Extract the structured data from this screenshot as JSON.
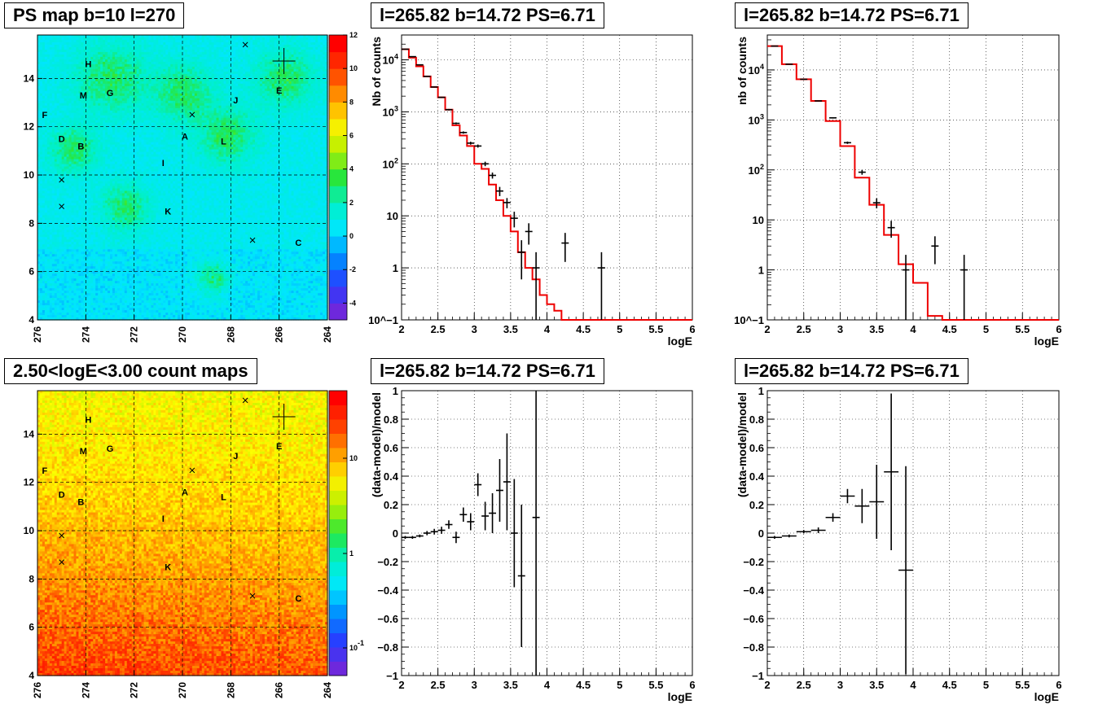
{
  "colors": {
    "model_line": "#ee0000",
    "data_marker": "#000000",
    "grid": "#000000",
    "frame": "#000000"
  },
  "charts": [
    {
      "id": "ps-map",
      "title": "PS map b=10 l=270"
    },
    {
      "id": "spec1",
      "title": "l=265.82 b=14.72 PS=6.71"
    },
    {
      "id": "spec2",
      "title": "l=265.82 b=14.72 PS=6.71"
    },
    {
      "id": "count-map",
      "title": "2.50<logE<3.00 count maps"
    },
    {
      "id": "resid1",
      "title": "l=265.82 b=14.72 PS=6.71"
    },
    {
      "id": "resid2",
      "title": "l=265.82 b=14.72 PS=6.71"
    }
  ],
  "chart_data": [
    {
      "type": "heatmap",
      "title": "PS map b=10 l=270",
      "x_ticks": [
        "276",
        "274",
        "272",
        "270",
        "268",
        "266",
        "264"
      ],
      "xlim": [
        276,
        264
      ],
      "y_ticks": [
        "4",
        "6",
        "8",
        "10",
        "12",
        "14"
      ],
      "ylim": [
        4,
        15.8
      ],
      "colorbar": {
        "range": [
          -5,
          12
        ],
        "ticks": [
          "-4",
          "-2",
          "0",
          "2",
          "4",
          "6",
          "8",
          "10",
          "12"
        ]
      },
      "grid": true,
      "source_labels": [
        {
          "label": "H",
          "l": 273.9,
          "b": 14.6
        },
        {
          "label": "M",
          "l": 274.1,
          "b": 13.3
        },
        {
          "label": "G",
          "l": 273.0,
          "b": 13.4
        },
        {
          "label": "F",
          "l": 275.7,
          "b": 12.5
        },
        {
          "label": "D",
          "l": 275.0,
          "b": 11.5
        },
        {
          "label": "B",
          "l": 274.2,
          "b": 11.2
        },
        {
          "label": "A",
          "l": 269.9,
          "b": 11.6
        },
        {
          "label": "L",
          "l": 268.3,
          "b": 11.4
        },
        {
          "label": "I",
          "l": 270.8,
          "b": 10.5
        },
        {
          "label": "J",
          "l": 267.8,
          "b": 13.1
        },
        {
          "label": "E",
          "l": 266.0,
          "b": 13.5
        },
        {
          "label": "K",
          "l": 270.6,
          "b": 8.5
        },
        {
          "label": "C",
          "l": 265.2,
          "b": 7.2
        }
      ],
      "markers_x": [
        {
          "l": 267.4,
          "b": 15.4
        },
        {
          "l": 269.6,
          "b": 12.5
        },
        {
          "l": 275.0,
          "b": 9.8
        },
        {
          "l": 275.0,
          "b": 8.7
        },
        {
          "l": 267.1,
          "b": 7.3
        }
      ],
      "markers_cross": [
        {
          "l": 265.8,
          "b": 14.72
        }
      ]
    },
    {
      "type": "line",
      "title": "l=265.82 b=14.72 PS=6.71",
      "xlabel": "logE",
      "ylabel": "Nb of counts",
      "xlim": [
        2,
        6
      ],
      "ylim": [
        0.1,
        30000
      ],
      "y_log": true,
      "x_ticks": [
        "2",
        "2.5",
        "3",
        "3.5",
        "4",
        "4.5",
        "5",
        "5.5",
        "6"
      ],
      "y_ticks": [
        "10^-1",
        "1",
        "10",
        "10^2",
        "10^3",
        "10^4"
      ],
      "grid": true,
      "series": [
        {
          "kind": "model_histogram",
          "bins": [
            2.0,
            2.1,
            2.2,
            2.3,
            2.4,
            2.5,
            2.6,
            2.7,
            2.8,
            2.9,
            3.0,
            3.1,
            3.2,
            3.3,
            3.4,
            3.5,
            3.6,
            3.7,
            3.8,
            3.9,
            4.0,
            4.1,
            4.2,
            4.3,
            6.0
          ],
          "values": [
            16000,
            11000,
            7500,
            4800,
            3000,
            1900,
            1100,
            550,
            350,
            220,
            100,
            80,
            40,
            20,
            10,
            5,
            2,
            1,
            0.6,
            0.3,
            0.2,
            0.15,
            0.1,
            0.1
          ]
        },
        {
          "kind": "data_points",
          "x": [
            2.05,
            2.15,
            2.25,
            2.35,
            2.45,
            2.55,
            2.65,
            2.75,
            2.85,
            2.95,
            3.05,
            3.15,
            3.25,
            3.35,
            3.45,
            3.55,
            3.65,
            3.75,
            3.85,
            3.95,
            4.25,
            4.75
          ],
          "y": [
            16000,
            11500,
            8000,
            4800,
            3000,
            1900,
            1100,
            600,
            400,
            250,
            220,
            100,
            60,
            30,
            18,
            9,
            2,
            5,
            1,
            0.1,
            3,
            1
          ],
          "yerr_lo": [
            130,
            110,
            90,
            70,
            55,
            45,
            35,
            25,
            20,
            16,
            15,
            10,
            8,
            6,
            4,
            3,
            1.4,
            2.2,
            1,
            0,
            1.7,
            1
          ],
          "yerr_hi": [
            130,
            110,
            90,
            70,
            55,
            45,
            35,
            25,
            20,
            16,
            15,
            10,
            8,
            6,
            4,
            3,
            1.4,
            2.2,
            1,
            0,
            1.7,
            1
          ]
        }
      ]
    },
    {
      "type": "line",
      "title": "l=265.82 b=14.72 PS=6.71",
      "xlabel": "logE",
      "ylabel": "nb of counts",
      "xlim": [
        2,
        6
      ],
      "ylim": [
        0.1,
        50000
      ],
      "y_log": true,
      "x_ticks": [
        "2",
        "2.5",
        "3",
        "3.5",
        "4",
        "4.5",
        "5",
        "5.5",
        "6"
      ],
      "y_ticks": [
        "10^-1",
        "1",
        "10",
        "10^2",
        "10^3",
        "10^4"
      ],
      "grid": true,
      "series": [
        {
          "kind": "model_histogram",
          "bins": [
            2.0,
            2.2,
            2.4,
            2.6,
            2.8,
            3.0,
            3.2,
            3.4,
            3.6,
            3.8,
            4.0,
            4.2,
            4.4,
            6.0
          ],
          "values": [
            30000,
            13000,
            6500,
            2400,
            950,
            300,
            70,
            20,
            5,
            1.3,
            0.55,
            0.12,
            0.1
          ]
        },
        {
          "kind": "data_points",
          "x": [
            2.1,
            2.3,
            2.5,
            2.7,
            2.9,
            3.1,
            3.3,
            3.5,
            3.7,
            3.9,
            4.3,
            4.7
          ],
          "y": [
            30000,
            13000,
            6500,
            2400,
            1100,
            350,
            90,
            22,
            7,
            1,
            3,
            1
          ],
          "yerr_lo": [
            170,
            115,
            80,
            50,
            33,
            19,
            10,
            5,
            2.6,
            1,
            1.7,
            1
          ],
          "yerr_hi": [
            170,
            115,
            80,
            50,
            33,
            19,
            10,
            5,
            2.6,
            1,
            1.7,
            1
          ]
        }
      ]
    },
    {
      "type": "heatmap",
      "title": "2.50<logE<3.00 count maps",
      "x_ticks": [
        "276",
        "274",
        "272",
        "270",
        "268",
        "266",
        "264"
      ],
      "xlim": [
        276,
        264
      ],
      "y_ticks": [
        "4",
        "6",
        "8",
        "10",
        "12",
        "14"
      ],
      "ylim": [
        4,
        15.8
      ],
      "colorbar": {
        "log": true,
        "ticks": [
          "10",
          "1",
          "10^-1"
        ]
      },
      "grid": true,
      "source_labels": [
        {
          "label": "H",
          "l": 273.9,
          "b": 14.6
        },
        {
          "label": "M",
          "l": 274.1,
          "b": 13.3
        },
        {
          "label": "G",
          "l": 273.0,
          "b": 13.4
        },
        {
          "label": "F",
          "l": 275.7,
          "b": 12.5
        },
        {
          "label": "D",
          "l": 275.0,
          "b": 11.5
        },
        {
          "label": "B",
          "l": 274.2,
          "b": 11.2
        },
        {
          "label": "A",
          "l": 269.9,
          "b": 11.6
        },
        {
          "label": "L",
          "l": 268.3,
          "b": 11.4
        },
        {
          "label": "I",
          "l": 270.8,
          "b": 10.5
        },
        {
          "label": "J",
          "l": 267.8,
          "b": 13.1
        },
        {
          "label": "E",
          "l": 266.0,
          "b": 13.5
        },
        {
          "label": "K",
          "l": 270.6,
          "b": 8.5
        },
        {
          "label": "C",
          "l": 265.2,
          "b": 7.2
        }
      ],
      "markers_x": [
        {
          "l": 267.4,
          "b": 15.4
        },
        {
          "l": 269.6,
          "b": 12.5
        },
        {
          "l": 275.0,
          "b": 9.8
        },
        {
          "l": 275.0,
          "b": 8.7
        },
        {
          "l": 267.1,
          "b": 7.3
        }
      ],
      "markers_cross": [
        {
          "l": 265.8,
          "b": 14.72
        }
      ]
    },
    {
      "type": "scatter",
      "title": "l=265.82 b=14.72 PS=6.71",
      "xlabel": "logE",
      "ylabel": "(data-model)/model",
      "xlim": [
        2,
        6
      ],
      "ylim": [
        -1,
        1
      ],
      "x_ticks": [
        "2",
        "2.5",
        "3",
        "3.5",
        "4",
        "4.5",
        "5",
        "5.5",
        "6"
      ],
      "y_ticks": [
        "-1",
        "-0.8",
        "-0.6",
        "-0.4",
        "-0.2",
        "0",
        "0.2",
        "0.4",
        "0.6",
        "0.8",
        "1"
      ],
      "grid": true,
      "series": [
        {
          "kind": "data_points",
          "x": [
            2.05,
            2.15,
            2.25,
            2.35,
            2.45,
            2.55,
            2.65,
            2.75,
            2.85,
            2.95,
            3.05,
            3.15,
            3.25,
            3.35,
            3.45,
            3.55,
            3.65,
            3.85
          ],
          "y": [
            -0.03,
            -0.03,
            -0.02,
            0.0,
            0.01,
            0.02,
            0.06,
            -0.03,
            0.13,
            0.08,
            0.34,
            0.12,
            0.14,
            0.3,
            0.36,
            0.0,
            -0.3,
            0.11
          ],
          "yerr": [
            0.01,
            0.01,
            0.01,
            0.015,
            0.02,
            0.025,
            0.03,
            0.04,
            0.05,
            0.06,
            0.08,
            0.1,
            0.14,
            0.22,
            0.34,
            0.38,
            0.5,
            1.2
          ],
          "xerr": 0.05
        }
      ]
    },
    {
      "type": "scatter",
      "title": "l=265.82 b=14.72 PS=6.71",
      "xlabel": "logE",
      "ylabel": "(data-model)/model",
      "xlim": [
        2,
        6
      ],
      "ylim": [
        -1,
        1
      ],
      "x_ticks": [
        "2",
        "2.5",
        "3",
        "3.5",
        "4",
        "4.5",
        "5",
        "5.5",
        "6"
      ],
      "y_ticks": [
        "-1",
        "-0.8",
        "-0.6",
        "-0.4",
        "-0.2",
        "0",
        "0.2",
        "0.4",
        "0.6",
        "0.8",
        "1"
      ],
      "grid": true,
      "series": [
        {
          "kind": "data_points",
          "x": [
            2.1,
            2.3,
            2.5,
            2.7,
            2.9,
            3.1,
            3.3,
            3.5,
            3.7,
            3.9
          ],
          "y": [
            -0.03,
            -0.02,
            0.01,
            0.02,
            0.11,
            0.26,
            0.19,
            0.22,
            0.43,
            -0.26
          ],
          "yerr": [
            0.01,
            0.01,
            0.012,
            0.02,
            0.03,
            0.05,
            0.12,
            0.26,
            0.55,
            0.73
          ],
          "xerr": 0.1
        }
      ]
    }
  ]
}
